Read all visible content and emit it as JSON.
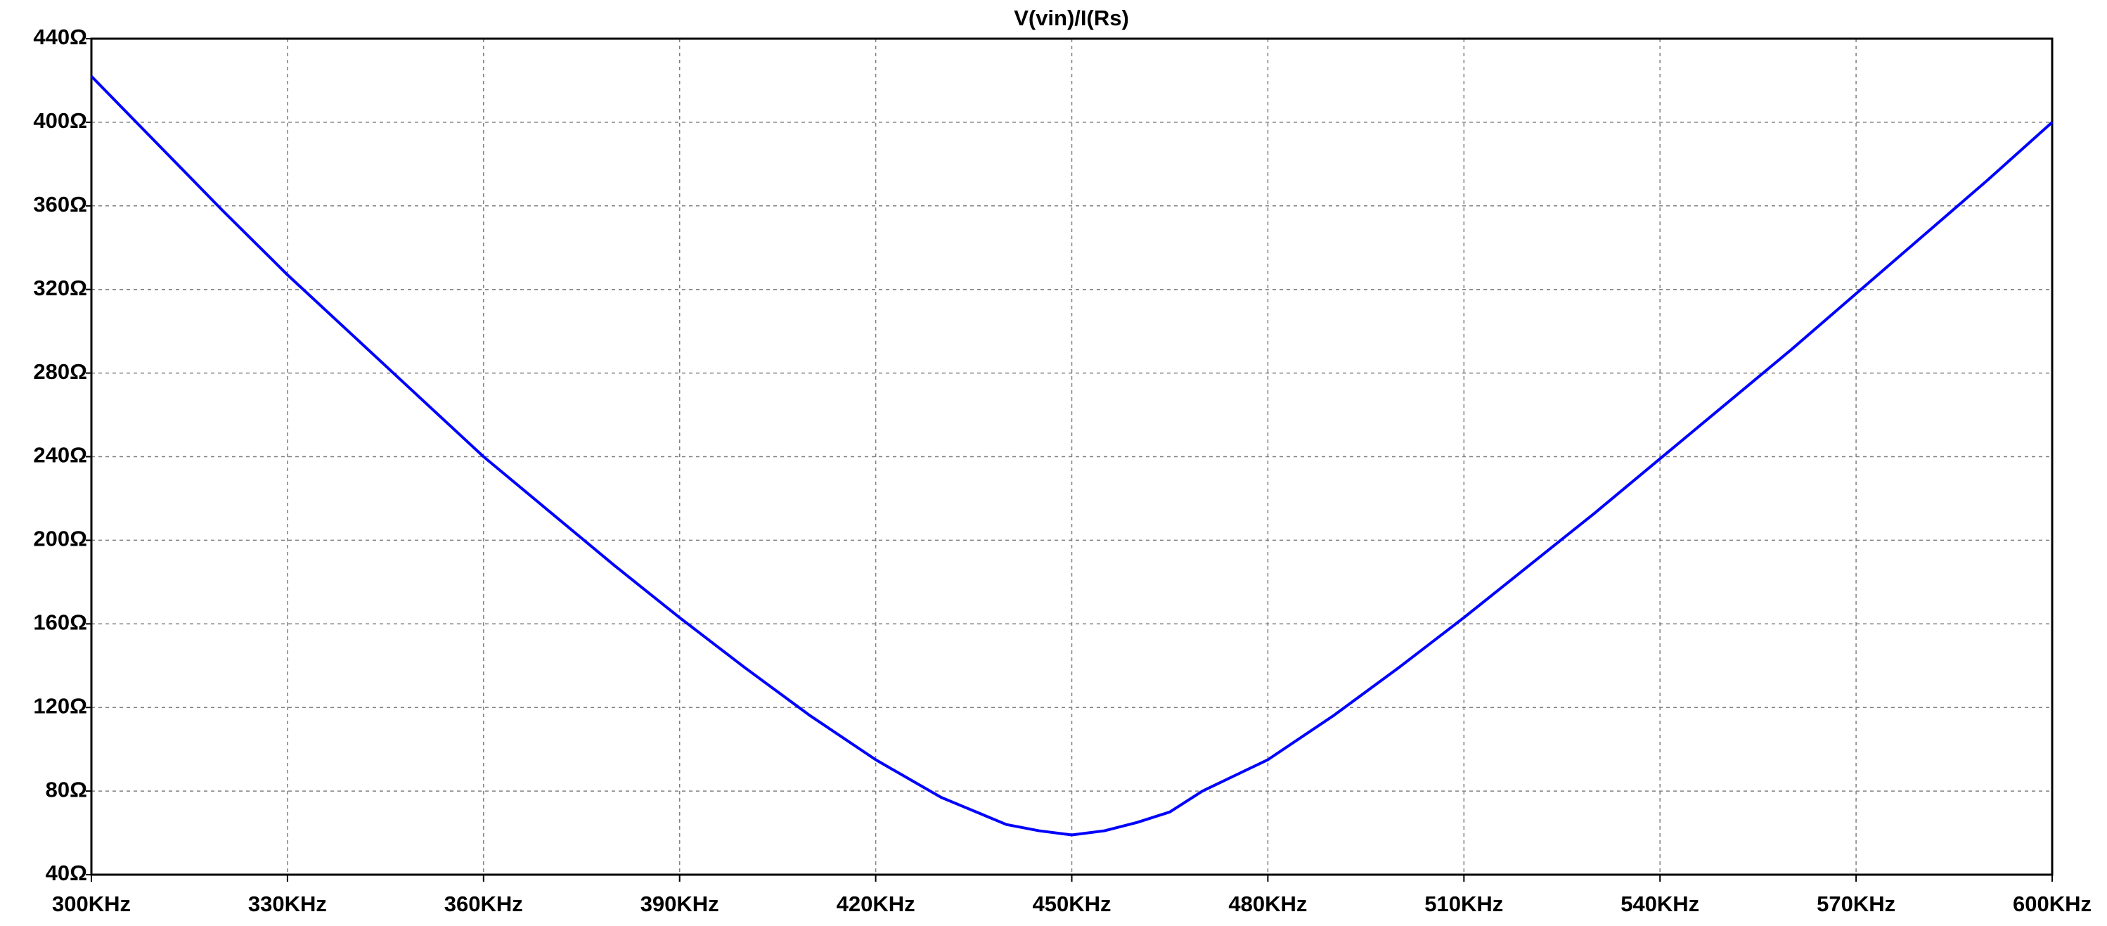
{
  "chart_data": {
    "type": "line",
    "title": "V(vin)/I(Rs)",
    "title_color": "#0000ff",
    "x": [
      300000,
      310000,
      320000,
      330000,
      340000,
      350000,
      360000,
      370000,
      380000,
      390000,
      400000,
      410000,
      420000,
      430000,
      440000,
      445000,
      450000,
      455000,
      460000,
      465000,
      470000,
      480000,
      490000,
      500000,
      510000,
      520000,
      530000,
      540000,
      550000,
      560000,
      570000,
      580000,
      590000,
      600000
    ],
    "series": [
      {
        "color": "#0000ff",
        "values": [
          422,
          390,
          358,
          327,
          298,
          269,
          240,
          214,
          188,
          163,
          139,
          116,
          95,
          77,
          64,
          61,
          59,
          61,
          65,
          70,
          80,
          95,
          116,
          139,
          163,
          188,
          213,
          239,
          265,
          291,
          318,
          345,
          372,
          400
        ]
      }
    ],
    "xlim": [
      300000,
      600000
    ],
    "xticks": [
      {
        "value": 300000,
        "label": "300KHz"
      },
      {
        "value": 330000,
        "label": "330KHz"
      },
      {
        "value": 360000,
        "label": "360KHz"
      },
      {
        "value": 390000,
        "label": "390KHz"
      },
      {
        "value": 420000,
        "label": "420KHz"
      },
      {
        "value": 450000,
        "label": "450KHz"
      },
      {
        "value": 480000,
        "label": "480KHz"
      },
      {
        "value": 510000,
        "label": "510KHz"
      },
      {
        "value": 540000,
        "label": "540KHz"
      },
      {
        "value": 570000,
        "label": "570KHz"
      },
      {
        "value": 600000,
        "label": "600KHz"
      }
    ],
    "ylim": [
      40,
      440
    ],
    "yticks": [
      {
        "value": 40,
        "label": "40Ω"
      },
      {
        "value": 80,
        "label": "80Ω"
      },
      {
        "value": 120,
        "label": "120Ω"
      },
      {
        "value": 160,
        "label": "160Ω"
      },
      {
        "value": 200,
        "label": "200Ω"
      },
      {
        "value": 240,
        "label": "240Ω"
      },
      {
        "value": 280,
        "label": "280Ω"
      },
      {
        "value": 320,
        "label": "320Ω"
      },
      {
        "value": 360,
        "label": "360Ω"
      },
      {
        "value": 400,
        "label": "400Ω"
      },
      {
        "value": 440,
        "label": "440Ω"
      }
    ],
    "grid": true
  }
}
